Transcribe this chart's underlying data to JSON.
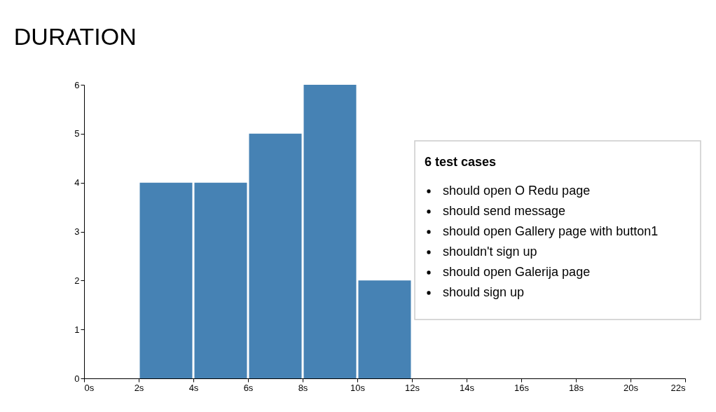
{
  "chart_data": {
    "type": "histogram",
    "title": "DURATION",
    "bins": [
      0,
      2,
      4,
      6,
      8,
      10,
      12,
      14,
      16,
      18,
      20,
      22
    ],
    "values": [
      0,
      4,
      4,
      5,
      6,
      2,
      null,
      0,
      0,
      0,
      null
    ],
    "color": "#4682b4",
    "xlim": [
      0,
      22
    ],
    "xticks": [
      {
        "value": 0,
        "label": "0s"
      },
      {
        "value": 2,
        "label": "2s"
      },
      {
        "value": 4,
        "label": "4s"
      },
      {
        "value": 6,
        "label": "6s"
      },
      {
        "value": 8,
        "label": "8s"
      },
      {
        "value": 10,
        "label": "10s"
      },
      {
        "value": 12,
        "label": "12s"
      },
      {
        "value": 14,
        "label": "14s"
      },
      {
        "value": 16,
        "label": "16s"
      },
      {
        "value": 18,
        "label": "18s"
      },
      {
        "value": 20,
        "label": "20s"
      },
      {
        "value": 22,
        "label": "22s"
      }
    ],
    "ylim": [
      0,
      6
    ],
    "yticks": [
      0,
      1,
      2,
      3,
      4,
      5,
      6
    ],
    "grid": false,
    "annotations": [
      "6 test cases",
      "should open O Redu page",
      "should send message",
      "should open Gallery page with button1",
      "shouldn't sign up",
      "should open Galerija page",
      "should sign up"
    ]
  }
}
